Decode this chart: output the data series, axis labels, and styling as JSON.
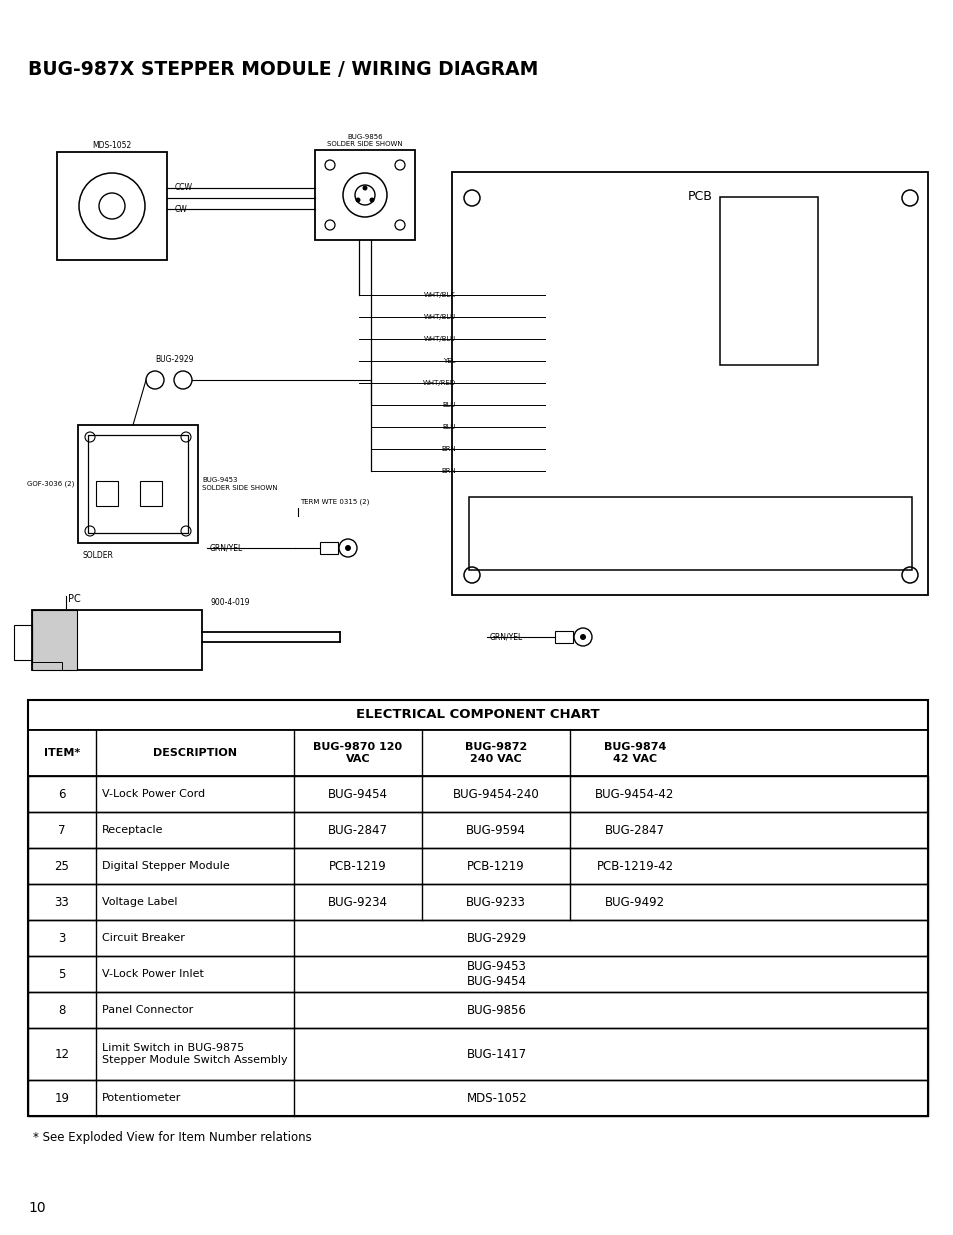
{
  "title": "BUG-987X STEPPER MODULE / WIRING DIAGRAM",
  "page_number": "10",
  "footnote": "* See Exploded View for Item Number relations",
  "table": {
    "header_title": "ELECTRICAL COMPONENT CHART",
    "columns": [
      "ITEM*",
      "DESCRIPTION",
      "BUG-9870 120\nVAC",
      "BUG-9872\n240 VAC",
      "BUG-9874\n42 VAC"
    ],
    "rows": [
      [
        "6",
        "V-Lock Power Cord",
        "BUG-9454",
        "BUG-9454-240",
        "BUG-9454-42"
      ],
      [
        "7",
        "Receptacle",
        "BUG-2847",
        "BUG-9594",
        "BUG-2847"
      ],
      [
        "25",
        "Digital Stepper Module",
        "PCB-1219",
        "PCB-1219",
        "PCB-1219-42"
      ],
      [
        "33",
        "Voltage Label",
        "BUG-9234",
        "BUG-9233",
        "BUG-9492"
      ],
      [
        "3",
        "Circuit Breaker",
        "",
        "BUG-2929",
        ""
      ],
      [
        "5",
        "V-Lock Power Inlet",
        "",
        "BUG-9453\nBUG-9454",
        ""
      ],
      [
        "8",
        "Panel Connector",
        "",
        "BUG-9856",
        ""
      ],
      [
        "12",
        "Limit Switch in BUG-9875\nStepper Module Switch Assembly",
        "",
        "BUG-1417",
        ""
      ],
      [
        "19",
        "Potentiometer",
        "",
        "MDS-1052",
        ""
      ]
    ]
  },
  "bg_color": "#ffffff",
  "text_color": "#000000",
  "line_color": "#000000"
}
